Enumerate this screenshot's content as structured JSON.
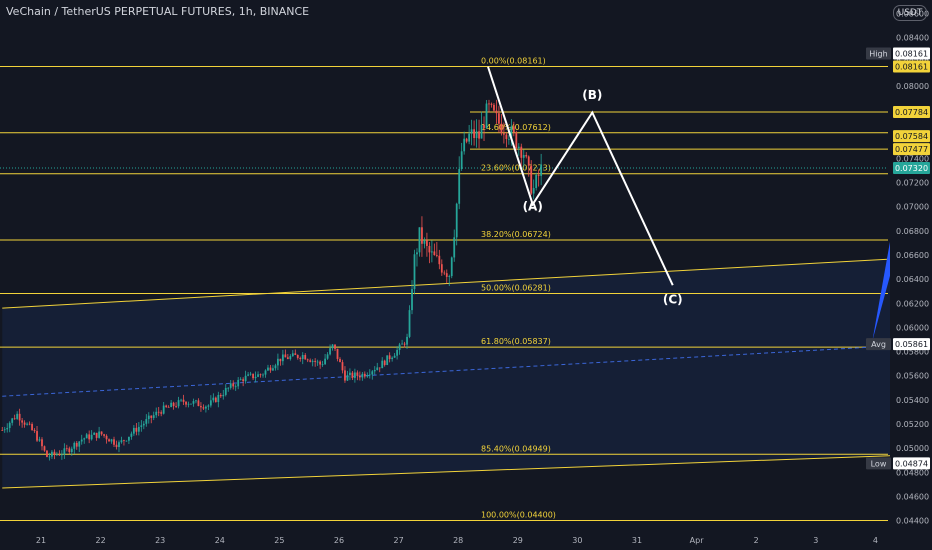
{
  "header": {
    "title": "VeChain / TetherUS PERPETUAL FUTURES, 1h, BINANCE",
    "currency": "USDT"
  },
  "colors": {
    "background": "#131722",
    "fib": "#f2d33a",
    "channel": "#f2d33a",
    "wave": "#ffffff",
    "candle_up": "#26a69a",
    "candle_down": "#ef5350",
    "avg_line": "#3b66d8",
    "forecast_arrow": "#2658ff",
    "last_price_badge": "#26a69a",
    "fill": "#162038"
  },
  "chart_data": {
    "type": "candlestick",
    "title": "VeChain / TetherUS PERPETUAL FUTURES, 1h, BINANCE",
    "y_axis": {
      "range": [
        0.0433,
        0.0877
      ],
      "ticks": [
        "0.08600",
        "0.08400",
        "0.08200",
        "0.08000",
        "0.07800",
        "0.07600",
        "0.07400",
        "0.07200",
        "0.07000",
        "0.06800",
        "0.06600",
        "0.06400",
        "0.06200",
        "0.06000",
        "0.05800",
        "0.05600",
        "0.05400",
        "0.05200",
        "0.05000",
        "0.04800",
        "0.04600",
        "0.04400"
      ]
    },
    "x_axis": {
      "ticks": [
        {
          "label": "21",
          "day": 21
        },
        {
          "label": "22",
          "day": 22
        },
        {
          "label": "23",
          "day": 23
        },
        {
          "label": "24",
          "day": 24
        },
        {
          "label": "25",
          "day": 25
        },
        {
          "label": "26",
          "day": 26
        },
        {
          "label": "27",
          "day": 27
        },
        {
          "label": "28",
          "day": 28
        },
        {
          "label": "29",
          "day": 29
        },
        {
          "label": "30",
          "day": 30
        },
        {
          "label": "31",
          "day": 31
        },
        {
          "label": "Apr",
          "day": 32
        },
        {
          "label": "2",
          "day": 33
        },
        {
          "label": "3",
          "day": 34
        },
        {
          "label": "4",
          "day": 35
        }
      ]
    },
    "fib_levels": [
      {
        "label": "0.00%(0.08161)",
        "value": 0.08161
      },
      {
        "label": "14.60%(0.07612)",
        "value": 0.07612
      },
      {
        "label": "23.60%(0.07273)",
        "value": 0.07273
      },
      {
        "label": "38.20%(0.06724)",
        "value": 0.06724
      },
      {
        "label": "50.00%(0.06281)",
        "value": 0.06281
      },
      {
        "label": "61.80%(0.05837)",
        "value": 0.05837
      },
      {
        "label": "85.40%(0.04949)",
        "value": 0.04949
      },
      {
        "label": "100.00%(0.04400)",
        "value": 0.044
      }
    ],
    "price_badges": [
      {
        "text": "0.08161",
        "value": 0.08161,
        "tag": "High"
      },
      {
        "text": "0.08161",
        "value": 0.08161,
        "tag": ""
      },
      {
        "text": "0.07784",
        "value": 0.07784,
        "tag": ""
      },
      {
        "text": "0.07584",
        "value": 0.07584,
        "tag": ""
      },
      {
        "text": "0.07477",
        "value": 0.07477,
        "tag": ""
      },
      {
        "text": "0.07320",
        "value": 0.0732,
        "tag": "",
        "current": true
      },
      {
        "text": "0.05861",
        "value": 0.05861,
        "tag": "Avg"
      },
      {
        "text": "0.04874",
        "value": 0.04874,
        "tag": "Low"
      }
    ],
    "extra_hlines": [
      0.07784,
      0.07477
    ],
    "channel": {
      "upper": [
        {
          "day": 20.35,
          "price": 0.0616
        },
        {
          "day": 35.4,
          "price": 0.0657
        }
      ],
      "middle": [
        {
          "day": 20.35,
          "price": 0.0543
        },
        {
          "day": 35.4,
          "price": 0.0585
        }
      ],
      "lower": [
        {
          "day": 20.35,
          "price": 0.0467
        },
        {
          "day": 35.4,
          "price": 0.0494
        }
      ]
    },
    "wave": {
      "points": [
        {
          "day": 28.5,
          "price": 0.0816
        },
        {
          "day": 29.25,
          "price": 0.0702
        },
        {
          "day": 30.25,
          "price": 0.0778
        },
        {
          "day": 31.6,
          "price": 0.0635
        }
      ],
      "labels": [
        {
          "text": "(A)",
          "day": 29.25,
          "price": 0.0697
        },
        {
          "text": "(B)",
          "day": 30.25,
          "price": 0.0789
        },
        {
          "text": "(C)",
          "day": 31.6,
          "price": 0.062
        }
      ]
    },
    "forecast_arrow": [
      {
        "day": 34.95,
        "price": 0.0589
      },
      {
        "day": 35.45,
        "price": 0.0728
      },
      {
        "day": 35.45,
        "price": 0.068
      }
    ],
    "price_path": [
      {
        "day": 20.35,
        "price": 0.0515
      },
      {
        "day": 20.6,
        "price": 0.0528
      },
      {
        "day": 20.9,
        "price": 0.0512
      },
      {
        "day": 21.1,
        "price": 0.0493
      },
      {
        "day": 21.4,
        "price": 0.0497
      },
      {
        "day": 21.7,
        "price": 0.0508
      },
      {
        "day": 22.0,
        "price": 0.0512
      },
      {
        "day": 22.3,
        "price": 0.0503
      },
      {
        "day": 22.6,
        "price": 0.0516
      },
      {
        "day": 23.0,
        "price": 0.0531
      },
      {
        "day": 23.4,
        "price": 0.0539
      },
      {
        "day": 23.8,
        "price": 0.0535
      },
      {
        "day": 24.1,
        "price": 0.0548
      },
      {
        "day": 24.4,
        "price": 0.0558
      },
      {
        "day": 24.7,
        "price": 0.0561
      },
      {
        "day": 25.0,
        "price": 0.0574
      },
      {
        "day": 25.4,
        "price": 0.0577
      },
      {
        "day": 25.7,
        "price": 0.0569
      },
      {
        "day": 25.9,
        "price": 0.0585
      },
      {
        "day": 26.1,
        "price": 0.0559
      },
      {
        "day": 26.4,
        "price": 0.0561
      },
      {
        "day": 26.7,
        "price": 0.0569
      },
      {
        "day": 27.0,
        "price": 0.0582
      },
      {
        "day": 27.15,
        "price": 0.0591
      },
      {
        "day": 27.25,
        "price": 0.0652
      },
      {
        "day": 27.35,
        "price": 0.0676
      },
      {
        "day": 27.5,
        "price": 0.0662
      },
      {
        "day": 27.7,
        "price": 0.0652
      },
      {
        "day": 27.85,
        "price": 0.0645
      },
      {
        "day": 27.95,
        "price": 0.0688
      },
      {
        "day": 28.05,
        "price": 0.0745
      },
      {
        "day": 28.2,
        "price": 0.076
      },
      {
        "day": 28.35,
        "price": 0.0758
      },
      {
        "day": 28.5,
        "price": 0.0782
      },
      {
        "day": 28.7,
        "price": 0.0768
      },
      {
        "day": 28.9,
        "price": 0.076
      },
      {
        "day": 29.1,
        "price": 0.0745
      },
      {
        "day": 29.25,
        "price": 0.0712
      },
      {
        "day": 29.4,
        "price": 0.0732
      }
    ]
  }
}
